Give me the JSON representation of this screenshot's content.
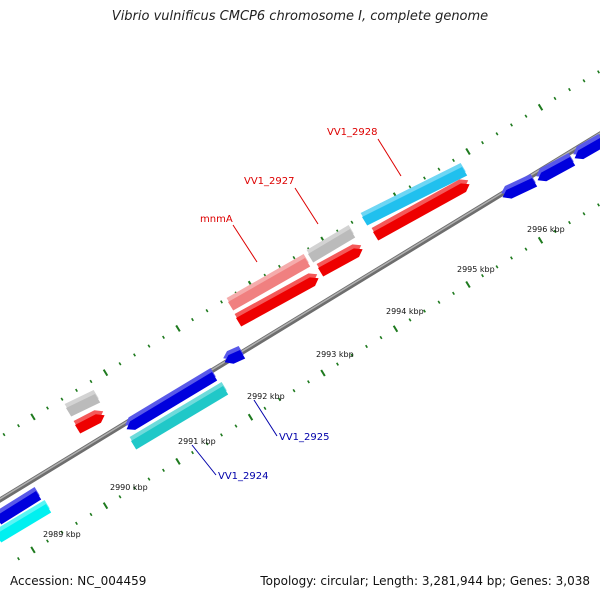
{
  "title": "Vibrio vulnificus CMCP6 chromosome I, complete genome",
  "footer": {
    "accession": "Accession: NC_004459",
    "summary": "Topology: circular; Length: 3,281,944 bp; Genes: 3,038"
  },
  "colors": {
    "backbone": "#8a8a8a",
    "tick": "#1e7a1e",
    "forward_cds": "#ee0000",
    "forward_cds_light": "#f08080",
    "forward_gray": "#bbbbbb",
    "forward_cyan": "#20c0ee",
    "reverse_cds": "#0000dd",
    "reverse_teal": "#20c8c8",
    "reverse_cyan": "#00f0f0",
    "label_forward": "#dd0000",
    "label_reverse": "#0000aa"
  },
  "kbp_labels": [
    "2989 kbp",
    "2990 kbp",
    "2991 kbp",
    "2992 kbp",
    "2993 kbp",
    "2994 kbp",
    "2995 kbp",
    "2996 kbp"
  ],
  "gene_labels": {
    "mnmA": "mnmA",
    "vv1_2927": "VV1_2927",
    "vv1_2928": "VV1_2928",
    "vv1_2924": "VV1_2924",
    "vv1_2925": "VV1_2925"
  }
}
